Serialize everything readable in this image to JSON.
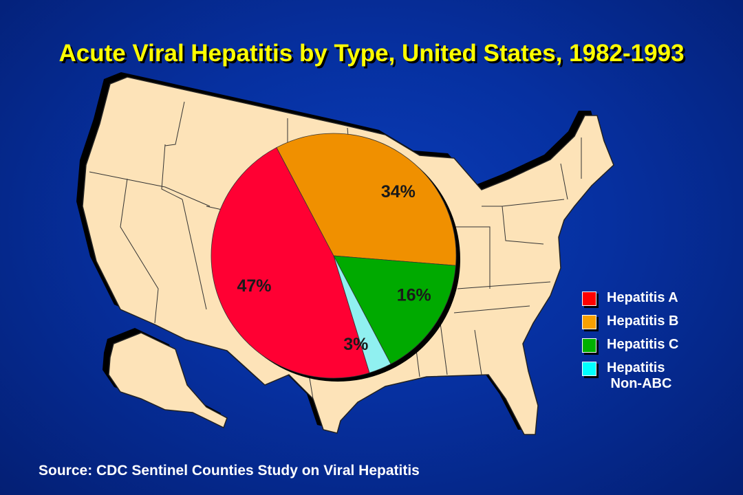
{
  "slide": {
    "title": "Acute Viral Hepatitis by Type, United States, 1982-1993",
    "source": "Source: CDC Sentinel Counties Study on Viral Hepatitis"
  },
  "colors": {
    "background": "#0630a0",
    "title": "#ffff00",
    "map_fill": "#fde3b8",
    "map_shadow": "#000000"
  },
  "chart_data": {
    "type": "pie",
    "title": "Acute Viral Hepatitis by Type, United States, 1982-1993",
    "slices": [
      {
        "name": "Hepatitis A",
        "value": 47,
        "label": "47%",
        "color": "#ff0033"
      },
      {
        "name": "Hepatitis B",
        "value": 34,
        "label": "34%",
        "color": "#f09000"
      },
      {
        "name": "Hepatitis C",
        "value": 16,
        "label": "16%",
        "color": "#00aa00"
      },
      {
        "name": "Hepatitis Non-ABC",
        "value": 3,
        "label": "3%",
        "color": "#90f0f0"
      }
    ],
    "legend": {
      "placement": "right",
      "items": [
        {
          "label": "Hepatitis A",
          "color": "#ff0000"
        },
        {
          "label": "Hepatitis B",
          "color": "#f7a000"
        },
        {
          "label": "Hepatitis C",
          "color": "#00b000"
        },
        {
          "label": "Hepatitis\n Non-ABC",
          "color": "#00ffff"
        }
      ]
    },
    "annotation": "Source: CDC Sentinel Counties Study on Viral Hepatitis"
  }
}
